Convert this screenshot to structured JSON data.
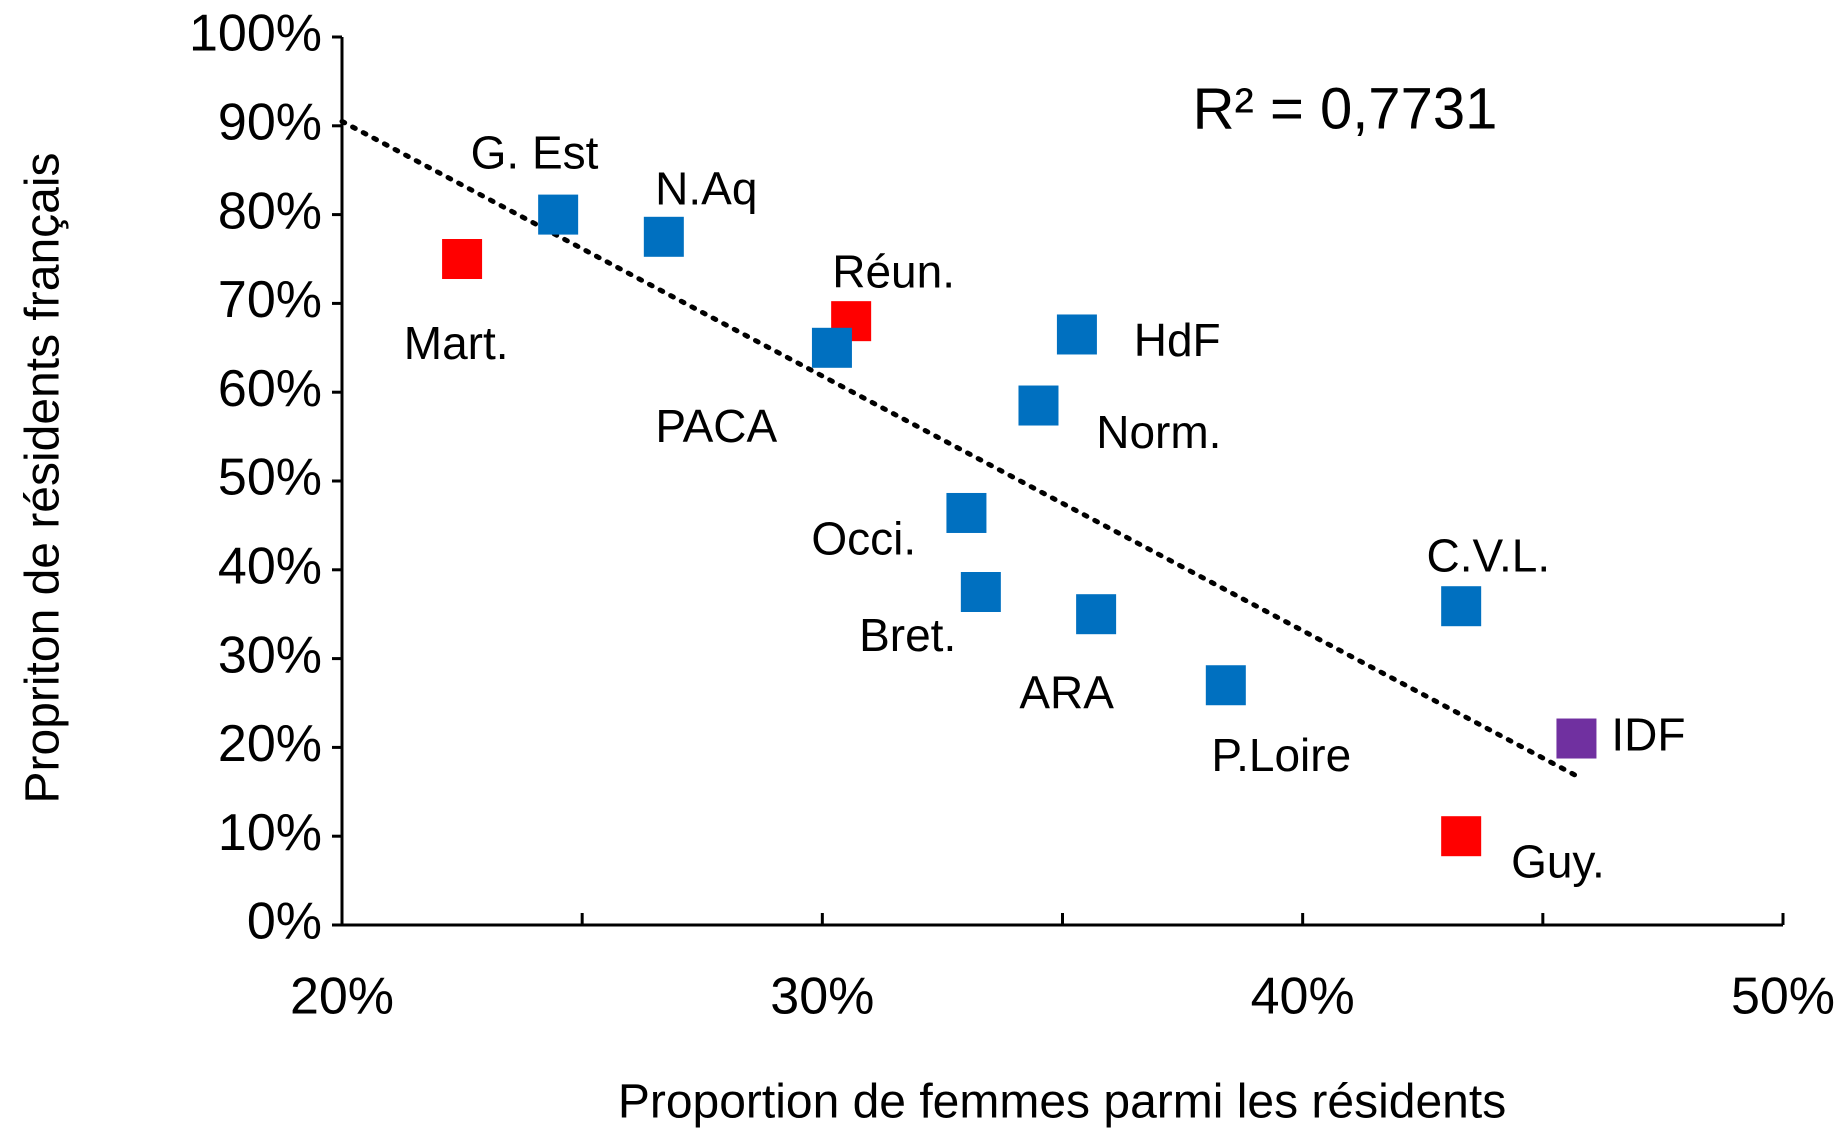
{
  "chart_data": {
    "type": "scatter",
    "xlabel": "Proportion de femmes parmi les résidents",
    "ylabel": "Propriton de résidents français",
    "annotation": "R² = 0,7731",
    "categories": [
      "G. Est",
      "N.Aq",
      "Mart.",
      "Réun.",
      "PACA",
      "HdF",
      "Norm.",
      "Occi.",
      "Bret.",
      "ARA",
      "P.Loire",
      "C.V.L.",
      "IDF",
      "Guy."
    ],
    "x": [
      24.5,
      26.7,
      22.5,
      30.6,
      30.2,
      35.3,
      34.5,
      33.0,
      33.3,
      35.7,
      38.4,
      43.3,
      45.7,
      43.3
    ],
    "values": [
      80,
      77.5,
      75,
      68,
      65,
      66.5,
      58.5,
      46.4,
      37.5,
      35,
      27,
      35.9,
      21,
      10
    ],
    "colors": [
      "#0070c0",
      "#0070c0",
      "#ff0000",
      "#ff0000",
      "#0070c0",
      "#0070c0",
      "#0070c0",
      "#0070c0",
      "#0070c0",
      "#0070c0",
      "#0070c0",
      "#0070c0",
      "#7030a0",
      "#ff0000"
    ],
    "trendline": {
      "x": [
        20,
        45.7
      ],
      "y": [
        90.5,
        16.8
      ],
      "color": "#000000"
    },
    "xlim": [
      20,
      50
    ],
    "ylim": [
      0,
      100
    ],
    "xticks": [
      {
        "value": 20,
        "label": "20%"
      },
      {
        "value": 30,
        "label": "30%"
      },
      {
        "value": 40,
        "label": "40%"
      },
      {
        "value": 50,
        "label": "50%"
      }
    ],
    "x_minor_ticks": [
      25,
      35,
      45
    ],
    "yticks": [
      {
        "value": 0,
        "label": "0%"
      },
      {
        "value": 10,
        "label": "10%"
      },
      {
        "value": 20,
        "label": "20%"
      },
      {
        "value": 30,
        "label": "30%"
      },
      {
        "value": 40,
        "label": "40%"
      },
      {
        "value": 50,
        "label": "50%"
      },
      {
        "value": 60,
        "label": "60%"
      },
      {
        "value": 70,
        "label": "70%"
      },
      {
        "value": 80,
        "label": "80%"
      },
      {
        "value": 90,
        "label": "90%"
      },
      {
        "value": 100,
        "label": "100%"
      }
    ]
  }
}
